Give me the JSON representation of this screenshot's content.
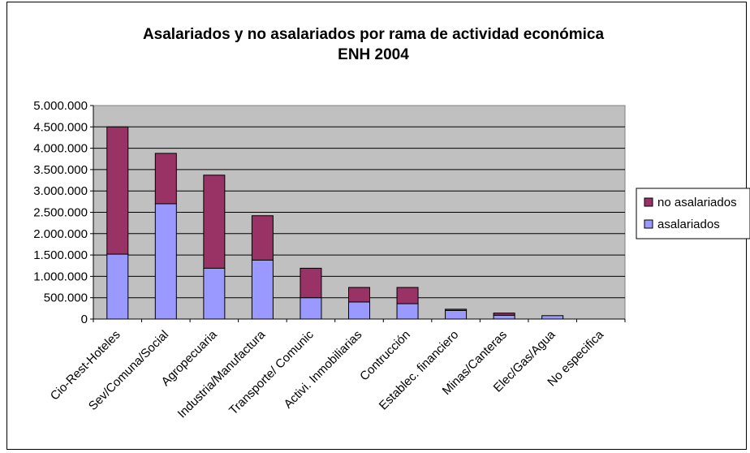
{
  "chart_data": {
    "type": "bar",
    "stacked": true,
    "title": "Asalariados y no asalariados por rama de actividad económica",
    "subtitle": "ENH 2004",
    "categories": [
      "Cio-Rest-Hoteles",
      "Sev/Comuna/Social",
      "Agropecuaria",
      "Industria/Manufactura",
      "Transporte/ Comunic",
      "Activi. Inmobiliarias",
      "Contrucción",
      "Establec. financiero",
      "Minas/Canteras",
      "Elec/Gas/Agua",
      "No especifica"
    ],
    "series": [
      {
        "name": "asalariados",
        "color": "#9999ff",
        "values": [
          1520000,
          2700000,
          1190000,
          1380000,
          500000,
          400000,
          360000,
          200000,
          90000,
          80000,
          0
        ]
      },
      {
        "name": "no asalariados",
        "color": "#993366",
        "values": [
          2980000,
          1180000,
          2180000,
          1040000,
          690000,
          340000,
          380000,
          30000,
          50000,
          0,
          0
        ]
      }
    ],
    "yticks": [
      "5.000.000",
      "4.500.000",
      "4.000.000",
      "3.500.000",
      "3.000.000",
      "2.500.000",
      "2.000.000",
      "1.500.000",
      "1.000.000",
      "500.000",
      "0"
    ],
    "ylim": [
      0,
      5000000
    ],
    "plot_background": "#c0c0c0",
    "grid": true,
    "legend_position": "right"
  }
}
